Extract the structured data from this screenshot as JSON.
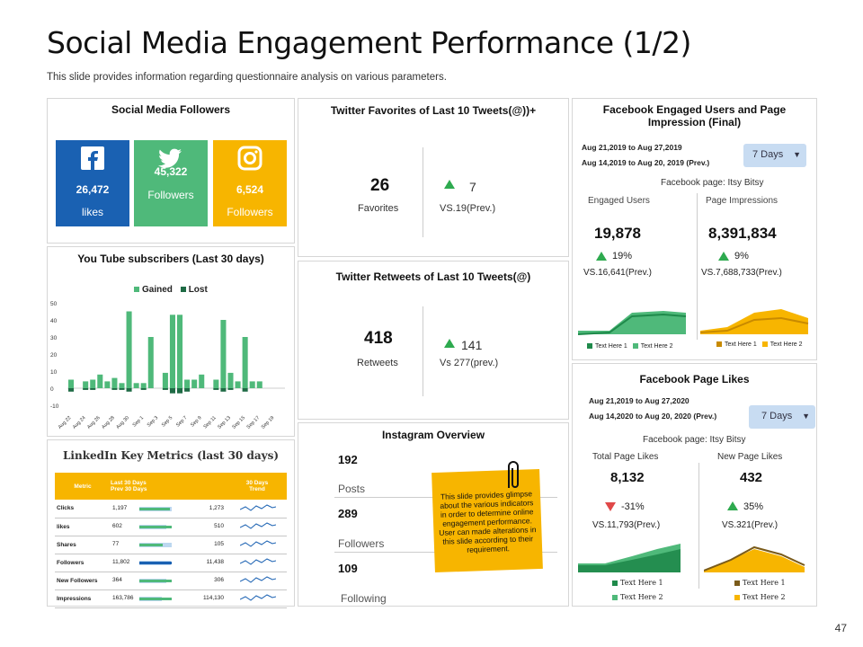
{
  "title": "Social Media Engagement Performance (1/2)",
  "subtitle": "This slide provides  information  regarding  questionnaire  analysis on various  parameters.",
  "page_number": "47",
  "colors": {
    "facebook": "#1a61b2",
    "twitter": "#4fb97a",
    "instagram": "#f7b500",
    "accent_green": "#2eaa4f",
    "dark_green": "#1f6b45"
  },
  "followers": {
    "title": "Social Media Followers",
    "facebook": {
      "value": "26,472",
      "label": "likes",
      "icon": "facebook-icon"
    },
    "twitter": {
      "value": "45,322",
      "label": "Followers",
      "icon": "twitter-icon"
    },
    "instagram": {
      "value": "6,524",
      "label": "Followers",
      "icon": "instagram-icon"
    }
  },
  "twitter_fav": {
    "title": "Twitter Favorites of Last 10 Tweets(@))+",
    "value": "26",
    "label": "Favorites",
    "change": "7",
    "prev": "VS.19(Prev.)"
  },
  "twitter_rt": {
    "title": "Twitter Retweets of Last 10 Tweets(@)",
    "value": "418",
    "label": "Retweets",
    "change": "141",
    "prev": "Vs 277(prev.)"
  },
  "instagram": {
    "title": "Instagram Overview",
    "posts_value": "192",
    "posts_label": "Posts",
    "followers_value": "289",
    "followers_label": "Followers",
    "following_value": "109",
    "following_label": "Following",
    "note": "This slide provides glimpse about the various indicators in order to determine online engagement performance. User can made alterations in this slide according to their requirement."
  },
  "fb_engaged": {
    "title": "Facebook Engaged Users and Page Impression (Final)",
    "date1": "Aug 21,2019 to Aug 27,2019",
    "date2": "Aug 14,2019 to Aug 20, 2019 (Prev.)",
    "dropdown": "7 Days",
    "page": "Facebook page: Itsy Bitsy",
    "left_label": "Engaged Users",
    "left_value": "19,878",
    "left_change": "19%",
    "left_prev": "VS.16,641(Prev.)",
    "right_label": "Page Impressions",
    "right_value": "8,391,834",
    "right_change": "9%",
    "right_prev": "VS.7,688,733(Prev.)",
    "left_legend": [
      "Text Here 1",
      "Text Here 2"
    ],
    "right_legend": [
      "Text Here 1",
      "Text Here 2"
    ]
  },
  "fb_likes": {
    "title": "Facebook Page Likes",
    "date1": "Aug 21,2019 to Aug 27,2020",
    "date2": "Aug 14,2020 to Aug 20, 2020 (Prev.)",
    "dropdown": "7 Days",
    "page": "Facebook page: Itsy Bitsy",
    "left_label": "Total Page Likes",
    "left_value": "8,132",
    "left_change": "-31%",
    "left_prev": "VS.11,793(Prev.)",
    "right_label": "New Page Likes",
    "right_value": "432",
    "right_change": "35%",
    "right_prev": "VS.321(Prev.)",
    "left_legend": [
      "Text Here 1",
      "Text Here 2"
    ],
    "right_legend": [
      "Text Here 1",
      "Text Here 2"
    ]
  },
  "youtube": {
    "title": "You Tube subscribers (Last 30 days)",
    "legend": [
      "Gained",
      "Lost"
    ],
    "chart_data": {
      "type": "bar",
      "categories": [
        "Aug 22",
        "Aug 23",
        "Aug 24",
        "Aug 25",
        "Aug 26",
        "Aug 27",
        "Aug 28",
        "Aug 29",
        "Aug 30",
        "Aug 31",
        "Sep 1",
        "Sep 2",
        "Sep 3",
        "Sep 4",
        "Sep 5",
        "Sep 6",
        "Sep 7",
        "Sep 8",
        "Sep 9",
        "Sep 10",
        "Sep 11",
        "Sep 12",
        "Sep 13",
        "Sep 14",
        "Sep 15",
        "Sep 16",
        "Sep 17",
        "Sep 18",
        "Sep 19",
        "Sep 20"
      ],
      "tick_labels": [
        "Aug 22",
        "Aug 24",
        "Aug 26",
        "Aug 28",
        "Aug 30",
        "Sep 1",
        "Sep 3",
        "Sep 5",
        "Sep 7",
        "Sep 9",
        "Sep 11",
        "Sep 13",
        "Sep 15",
        "Sep 17",
        "Sep 19"
      ],
      "series": [
        {
          "name": "Gained",
          "values": [
            5,
            0,
            4,
            5,
            8,
            4,
            6,
            3,
            45,
            3,
            3,
            30,
            0,
            9,
            43,
            43,
            5,
            5,
            8,
            0,
            5,
            40,
            9,
            4,
            30,
            4,
            4,
            0,
            0,
            0
          ]
        },
        {
          "name": "Lost",
          "values": [
            -2,
            0,
            -1,
            -1,
            0,
            0,
            -1,
            -1,
            -2,
            0,
            -1,
            0,
            0,
            -1,
            -3,
            -3,
            -2,
            0,
            0,
            0,
            -1,
            -2,
            -1,
            0,
            -2,
            0,
            0,
            0,
            0,
            0
          ]
        }
      ],
      "yticks": [
        "50",
        "40",
        "30",
        "20",
        "10",
        "0",
        "-10"
      ],
      "ylim": [
        -10,
        50
      ]
    }
  },
  "linkedin": {
    "title": "LinkedIn Key Metrics (last 30 days)",
    "headers": {
      "metric": "Metric",
      "periods": "Last 30 Days\nPrev 30 Days",
      "trend": "30 Days\nTrend"
    },
    "rows": [
      {
        "metric": "Clicks",
        "last": "1,197",
        "prev": "1,273"
      },
      {
        "metric": "likes",
        "last": "602",
        "prev": "510"
      },
      {
        "metric": "Shares",
        "last": "77",
        "prev": "105"
      },
      {
        "metric": "Followers",
        "last": "11,802",
        "prev": "11,438"
      },
      {
        "metric": "New Followers",
        "last": "364",
        "prev": "306"
      },
      {
        "metric": "Impressions",
        "last": "163,786",
        "prev": "114,130"
      }
    ]
  }
}
